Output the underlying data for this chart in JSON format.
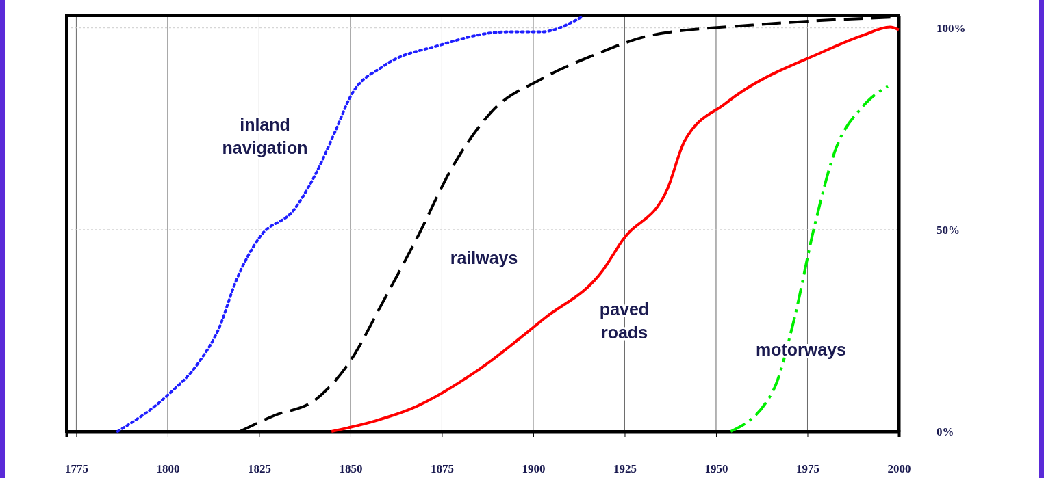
{
  "chart_data": {
    "type": "line",
    "xlim": [
      1772.3,
      2000
    ],
    "xticks": [
      1775,
      1800,
      1825,
      1850,
      1875,
      1900,
      1925,
      1950,
      1975,
      2000
    ],
    "ylim": [
      0,
      103
    ],
    "yticks": [
      {
        "value": 0,
        "label": "0%"
      },
      {
        "value": 50,
        "label": "50%"
      },
      {
        "value": 100,
        "label": "100%"
      }
    ],
    "grid": true,
    "series": [
      {
        "name": "inland\nnavigation",
        "color": "#1f1fff",
        "line_style": "dotted",
        "x": [
          1786.3,
          1800,
          1808.4,
          1814,
          1818.7,
          1825.3,
          1834.6,
          1840.3,
          1845.9,
          1850,
          1859,
          1874,
          1892.7,
          1902,
          1913.3
        ],
        "values": [
          0,
          9,
          17,
          25.5,
          37.3,
          48.3,
          55,
          63.5,
          74.5,
          83,
          90.5,
          95.6,
          99,
          99,
          102.7
        ]
      },
      {
        "name": "railways",
        "color": "#000000",
        "line_style": "dashed",
        "x": [
          1819.7,
          1829,
          1840.3,
          1849.6,
          1859,
          1868.4,
          1877.7,
          1889,
          1902,
          1917,
          1932,
          1960,
          2000
        ],
        "values": [
          0,
          3.9,
          7.8,
          17,
          32.3,
          48.3,
          65.2,
          79.6,
          87.2,
          93.4,
          98.1,
          100.7,
          102.7
        ]
      },
      {
        "name": "paved\nroads",
        "color": "#ff0000",
        "line_style": "solid",
        "x": [
          1844.8,
          1857,
          1866.5,
          1885.2,
          1903,
          1919,
          1924.5,
          1936.7,
          1941.4,
          1952.6,
          1978.8,
          1990,
          1997.6,
          2000
        ],
        "values": [
          0,
          2.7,
          5.6,
          15.4,
          28,
          39.9,
          47.5,
          60.1,
          72,
          81.3,
          93.9,
          98.1,
          100.2,
          99.5
        ]
      },
      {
        "name": "motorways",
        "color": "#00ee00",
        "line_style": "dashdot",
        "x": [
          1954,
          1965.7,
          1971.2,
          1976.9,
          1982.5,
          1990,
          1997
        ],
        "values": [
          0,
          10.3,
          27.2,
          50.8,
          69.4,
          80.4,
          85.5
        ]
      }
    ]
  }
}
